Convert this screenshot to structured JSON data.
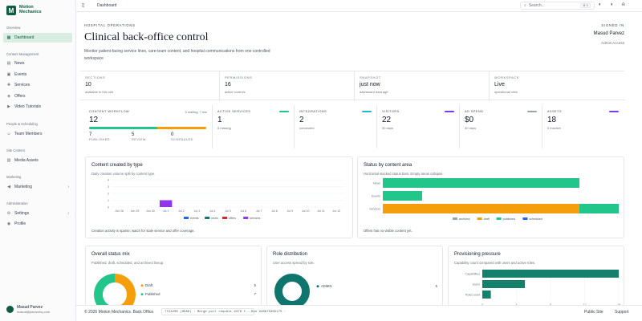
{
  "brand": {
    "line1": "Motion",
    "line2": "Mechanics",
    "logo": "M"
  },
  "sidebar": {
    "sections": [
      {
        "label": "Overview"
      },
      {
        "label": "Content Management"
      },
      {
        "label": "People & Scheduling"
      },
      {
        "label": "Site Content"
      },
      {
        "label": "Marketing"
      },
      {
        "label": "Administration"
      }
    ],
    "items": [
      {
        "label": "Dashboard",
        "icon": "dashboard-icon"
      },
      {
        "label": "News",
        "icon": "news-icon"
      },
      {
        "label": "Events",
        "icon": "calendar-icon"
      },
      {
        "label": "Services",
        "icon": "services-icon"
      },
      {
        "label": "Offers",
        "icon": "tag-icon"
      },
      {
        "label": "Video Tutorials",
        "icon": "video-icon"
      },
      {
        "label": "Team Members",
        "icon": "users-icon"
      },
      {
        "label": "Media Assets",
        "icon": "image-icon"
      },
      {
        "label": "Marketing",
        "icon": "megaphone-icon"
      },
      {
        "label": "Settings",
        "icon": "gear-icon"
      },
      {
        "label": "Profile",
        "icon": "user-icon"
      }
    ],
    "user": {
      "name": "Masud Parvez",
      "email": "masud@parvezhq.com"
    }
  },
  "topbar": {
    "breadcrumb": "Dashboard",
    "search_placeholder": "Search...",
    "search_kbd": "⌘ K"
  },
  "hero": {
    "eyebrow": "HOSPITAL OPERATIONS",
    "title": "Clinical back-office control",
    "subtitle": "Monitor patient-facing service lines, care-team content, and hospital communications from one controlled workspace",
    "signed_label": "SIGNED IN",
    "signed_name": "Masud Parvez",
    "signed_role": "Admin Access"
  },
  "stats": [
    {
      "label": "SECTIONS",
      "value": "10",
      "sub": "available to this role"
    },
    {
      "label": "PERMISSIONS",
      "value": "16",
      "sub": "active controls"
    },
    {
      "label": "SNAPSHOT",
      "value": "just now",
      "sub": "dashboard data age"
    },
    {
      "label": "WORKSPACE",
      "value": "Live",
      "sub": "operational view"
    }
  ],
  "workflow": {
    "label": "CONTENT WORKFLOW",
    "right": "5 waiting, 7 live",
    "value": "12",
    "published": 7,
    "review": 5,
    "scheduled": 0,
    "cols": [
      {
        "value": "7",
        "label": "PUBLISHED"
      },
      {
        "value": "5",
        "label": "REVIEW"
      },
      {
        "value": "0",
        "label": "SCHEDULED"
      }
    ],
    "colors": {
      "published": "#22c58a",
      "review": "#f59e0b",
      "scheduled": "#cbd5e1"
    }
  },
  "metrics": [
    {
      "label": "ACTIVE SERVICES",
      "value": "1",
      "sub": "5 missing",
      "swatch": "#22c58a"
    },
    {
      "label": "INTEGRATIONS",
      "value": "2",
      "sub": "connected",
      "swatch": "#22b8c5"
    },
    {
      "label": "VISITORS",
      "value": "22",
      "sub": "30 days",
      "swatch": "#7c3aed"
    },
    {
      "label": "AD SPEND",
      "value": "$0",
      "sub": "30 days",
      "swatch": "#9ca3af"
    },
    {
      "label": "ASSETS",
      "value": "18",
      "sub": "0 inactive",
      "swatch": "#7c3aed"
    }
  ],
  "content_by_type": {
    "title": "Content created by type",
    "subtitle": "Daily creation volume split by content type.",
    "footer": "Creation activity is sparse; watch for stale service and offer coverage.",
    "legend": [
      {
        "name": "events",
        "color": "#2563eb"
      },
      {
        "name": "news",
        "color": "#0f766e"
      },
      {
        "name": "offers",
        "color": "#dc2626"
      },
      {
        "name": "services",
        "color": "#9333ea"
      }
    ]
  },
  "status_by_area": {
    "title": "Status by content area",
    "subtitle": "Horizontal stacked status bars. Empty areas collapse.",
    "footer": "Offers has no visible content yet.",
    "legend": [
      {
        "name": "archived",
        "color": "#9ca3af"
      },
      {
        "name": "draft",
        "color": "#f59e0b"
      },
      {
        "name": "published",
        "color": "#22c58a"
      },
      {
        "name": "scheduled",
        "color": "#2563eb"
      }
    ]
  },
  "status_mix": {
    "title": "Overall status mix",
    "subtitle": "Published, draft, scheduled, and archived lineup.",
    "legend": [
      {
        "name": "Draft",
        "value": "5",
        "color": "#f59e0b"
      },
      {
        "name": "Published",
        "value": "7",
        "color": "#22c58a"
      }
    ]
  },
  "role_distribution": {
    "title": "Role distribution",
    "subtitle": "User access spread by role.",
    "legend": [
      {
        "name": "ADMIN",
        "value": "5",
        "color": "#0f766e"
      }
    ]
  },
  "provisioning": {
    "title": "Provisioning pressure",
    "subtitle": "Capability count compared with users and active roles.",
    "bar_color": "#15806b"
  },
  "chart_data": [
    {
      "type": "bar",
      "title": "Content created by type",
      "categories": [
        "Jun 28",
        "Jun 29",
        "Jun 30",
        "Jul 1",
        "Jul 2",
        "Jul 3",
        "Jul 4",
        "Jul 5",
        "Jul 6",
        "Jul 7",
        "Jul 8",
        "Jul 9",
        "Jul 10",
        "Jul 11",
        "Jul 12"
      ],
      "yticks": [
        "0",
        "1",
        "2",
        "3",
        "4"
      ],
      "ylim": [
        0,
        4
      ],
      "series": [
        {
          "name": "events",
          "values": [
            0,
            0,
            0,
            0,
            0,
            0,
            0,
            0,
            0,
            0,
            0,
            0,
            0,
            0,
            0
          ]
        },
        {
          "name": "news",
          "values": [
            0,
            0,
            0,
            0,
            0,
            0,
            0,
            0,
            0,
            0,
            0,
            0,
            0,
            0,
            0
          ]
        },
        {
          "name": "offers",
          "values": [
            0,
            0,
            0,
            0,
            0,
            0,
            0,
            0,
            0,
            0,
            0,
            0,
            0,
            0,
            0
          ]
        },
        {
          "name": "services",
          "values": [
            0,
            0,
            0,
            1,
            0,
            0,
            0,
            0,
            0,
            0,
            0,
            0,
            0,
            0,
            0
          ]
        }
      ]
    },
    {
      "type": "bar",
      "orientation": "horizontal",
      "stacked": true,
      "title": "Status by content area",
      "categories": [
        "News",
        "Events",
        "Services"
      ],
      "series": [
        {
          "name": "archived",
          "values": [
            0,
            0,
            0
          ]
        },
        {
          "name": "draft",
          "values": [
            0,
            0,
            5
          ]
        },
        {
          "name": "published",
          "values": [
            5,
            1,
            1
          ]
        },
        {
          "name": "scheduled",
          "values": [
            0,
            0,
            0
          ]
        }
      ]
    },
    {
      "type": "pie",
      "title": "Overall status mix",
      "categories": [
        "Draft",
        "Published"
      ],
      "values": [
        5,
        7
      ]
    },
    {
      "type": "pie",
      "title": "Role distribution",
      "categories": [
        "ADMIN"
      ],
      "values": [
        5
      ]
    },
    {
      "type": "bar",
      "orientation": "horizontal",
      "title": "Provisioning pressure",
      "categories": [
        "Capabilities",
        "Users",
        "Roles used"
      ],
      "values": [
        16,
        5,
        1
      ],
      "xticks": [
        "0",
        "4",
        "8",
        "12",
        "16"
      ],
      "xlim": [
        0,
        16
      ]
    }
  ],
  "footer": {
    "copyright": "© 2026 Motion Mechanics. Back Office.",
    "commit": "7724200  (HEAD) · Merge pull request #378 f...",
    "run": "Run #28675985175  ·",
    "links": [
      "Public Site",
      "Support"
    ]
  }
}
